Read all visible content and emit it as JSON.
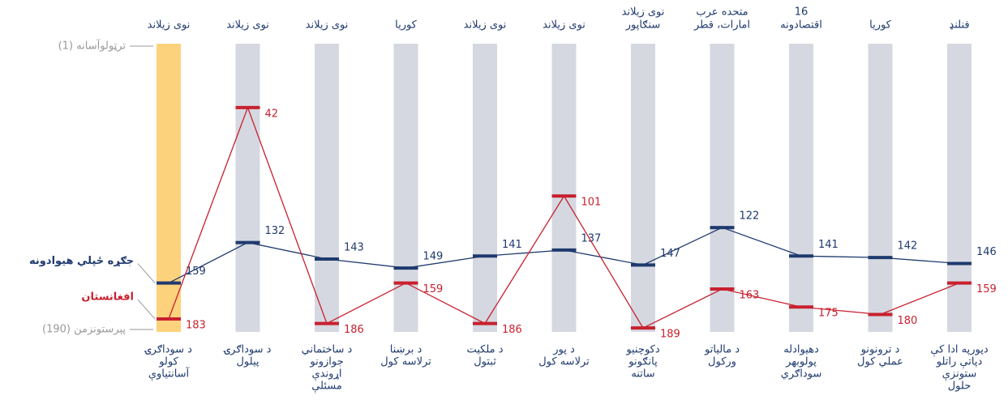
{
  "chart_data": {
    "type": "rank-slope",
    "categories": [
      [
        "د سوداګرۍ",
        "کولو",
        "آسانتیاوې"
      ],
      [
        "د سوداګرۍ",
        "پیلول"
      ],
      [
        "د ساختماني",
        "جوازونو",
        "اړوندې",
        "مسئلې"
      ],
      [
        "د برښنا",
        "ترلاسه کول"
      ],
      [
        "د ملکیت",
        "ثبتول"
      ],
      [
        "د پور",
        "ترلاسه کول"
      ],
      [
        "دکوچنیو",
        "پانګونو",
        "ساتنه"
      ],
      [
        "د مالیاتو",
        "ورکول"
      ],
      [
        "دهیوادله",
        "پولوبهر",
        "سوداګري"
      ],
      [
        "د ترونونو",
        "عملي کول"
      ],
      [
        "دپورپه ادا کې",
        "دپاتې راتلو",
        "ستونزې",
        "حلول"
      ]
    ],
    "top_labels": [
      [
        "نوی زیلاند"
      ],
      [
        "نوی زیلاند"
      ],
      [
        "نوی زیلاند"
      ],
      [
        "کوریا"
      ],
      [
        "نوی زیلاند"
      ],
      [
        "نوی زیلاند"
      ],
      [
        "نوی زیلاند",
        "سنګاپور"
      ],
      [
        "متحده عرب",
        "امارات، قطر"
      ],
      [
        "16",
        "اقتصادونه"
      ],
      [
        "کوریا"
      ],
      [
        "فنلنډ"
      ]
    ],
    "series": [
      {
        "name": "جګړه ځپلي هیوادونه",
        "color": "#1f3a6e",
        "values": [
          159,
          132,
          143,
          149,
          141,
          137,
          147,
          122,
          141,
          142,
          146
        ]
      },
      {
        "name": "افغانستان",
        "color": "#c8202f",
        "values": [
          183,
          42,
          186,
          159,
          186,
          101,
          189,
          163,
          175,
          180,
          159
        ]
      }
    ],
    "ylim": [
      1,
      190
    ],
    "yticks": [
      {
        "value": 1,
        "label": "ترټولوآسانه (1)"
      },
      {
        "value": 190,
        "label": "پېرستونزمن (190)"
      }
    ],
    "highlight_color": "#fdd27c",
    "column_color": "#d5d8e0"
  }
}
